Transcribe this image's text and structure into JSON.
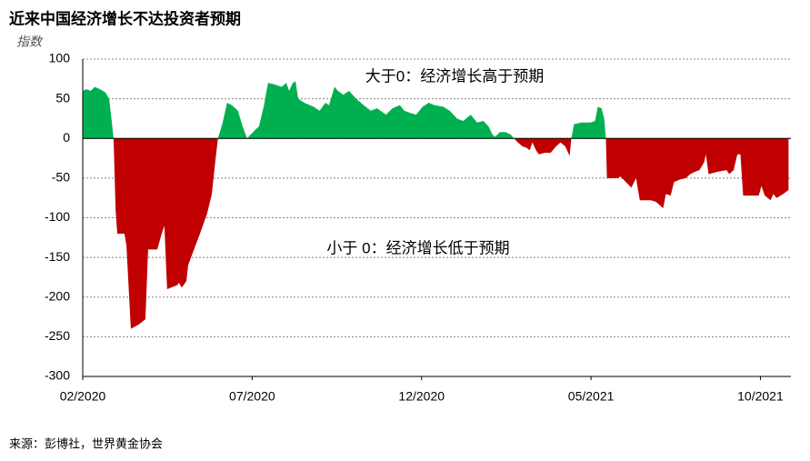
{
  "chart_data": {
    "type": "area",
    "title": "近来中国经济增长不达投资者预期",
    "subtitle": "指数",
    "annotations": [
      "大于0：经济增长高于预期",
      "小于 0：经济增长低于预期"
    ],
    "source": "来源：彭博社，世界黄金协会",
    "positive_color": "#00b050",
    "negative_color": "#c00000",
    "x": [
      0,
      0.11,
      0.24,
      0.35,
      0.51,
      0.67,
      0.78,
      0.86,
      0.91,
      0.97,
      1.02,
      1.23,
      1.29,
      1.42,
      1.64,
      1.85,
      1.93,
      2.2,
      2.33,
      2.41,
      2.49,
      2.79,
      2.84,
      2.92,
      3.06,
      3.11,
      3.24,
      3.46,
      3.67,
      3.81,
      3.91,
      3.99,
      4.13,
      4.26,
      4.4,
      4.58,
      4.72,
      4.85,
      4.96,
      5.07,
      5.2,
      5.34,
      5.47,
      5.66,
      5.87,
      6.01,
      6.09,
      6.2,
      6.28,
      6.36,
      6.54,
      6.81,
      6.99,
      7.16,
      7.27,
      7.43,
      7.53,
      7.69,
      7.86,
      8.07,
      8.29,
      8.5,
      8.69,
      8.95,
      9.14,
      9.36,
      9.49,
      9.68,
      9.84,
      10.03,
      10.21,
      10.38,
      10.64,
      10.83,
      11.05,
      11.23,
      11.45,
      11.64,
      11.82,
      11.98,
      12.09,
      12.17,
      12.31,
      12.47,
      12.63,
      12.73,
      12.84,
      12.98,
      13.11,
      13.19,
      13.27,
      13.38,
      13.46,
      13.64,
      13.81,
      13.97,
      14.1,
      14.24,
      14.37,
      14.42,
      14.5,
      14.72,
      14.99,
      15.12,
      15.2,
      15.31,
      15.39,
      15.44,
      15.47,
      15.79,
      15.87,
      16.03,
      16.19,
      16.33,
      16.44,
      16.76,
      16.92,
      17.05,
      17.13,
      17.21,
      17.35,
      17.45,
      17.61,
      17.8,
      17.93,
      18.07,
      18.2,
      18.34,
      18.39,
      18.47,
      18.74,
      19.0,
      19.08,
      19.21,
      19.32,
      19.41,
      19.49,
      19.81,
      19.95,
      20.03,
      20.13,
      20.3,
      20.38,
      20.48,
      20.67,
      20.83
    ],
    "values": [
      60,
      62,
      60,
      65,
      62,
      58,
      50,
      20,
      0,
      -90,
      -120,
      -120,
      -135,
      -240,
      -235,
      -228,
      -140,
      -140,
      -120,
      -110,
      -190,
      -185,
      -182,
      -188,
      -180,
      -160,
      -145,
      -120,
      -95,
      -70,
      -30,
      0,
      20,
      45,
      42,
      35,
      15,
      0,
      5,
      10,
      15,
      40,
      70,
      68,
      65,
      70,
      60,
      70,
      72,
      50,
      45,
      40,
      35,
      45,
      42,
      65,
      60,
      55,
      60,
      50,
      42,
      35,
      38,
      30,
      38,
      42,
      35,
      32,
      30,
      40,
      45,
      42,
      40,
      35,
      25,
      22,
      30,
      20,
      22,
      15,
      5,
      2,
      8,
      8,
      5,
      0,
      -5,
      -10,
      -12,
      -15,
      -5,
      -15,
      -20,
      -18,
      -18,
      -10,
      -5,
      -10,
      -22,
      0,
      18,
      20,
      20,
      22,
      40,
      38,
      25,
      0,
      -50,
      -50,
      -48,
      -55,
      -62,
      -50,
      -78,
      -78,
      -80,
      -85,
      -88,
      -70,
      -72,
      -55,
      -52,
      -50,
      -45,
      -42,
      -40,
      -30,
      -20,
      -45,
      -42,
      -40,
      -45,
      -40,
      -20,
      -20,
      -72,
      -72,
      -72,
      -60,
      -72,
      -78,
      -70,
      -75,
      -70,
      -65
    ],
    "xlim": [
      0,
      20.9
    ],
    "xticks": [
      {
        "value": 0,
        "label": "02/2020"
      },
      {
        "value": 5,
        "label": "07/2020"
      },
      {
        "value": 10,
        "label": "12/2020"
      },
      {
        "value": 15,
        "label": "05/2021"
      },
      {
        "value": 20,
        "label": "10/2021"
      }
    ],
    "ylim": [
      -300,
      100
    ],
    "yticks": [
      -300,
      -250,
      -200,
      -150,
      -100,
      -50,
      0,
      50,
      100
    ],
    "grid": true
  }
}
